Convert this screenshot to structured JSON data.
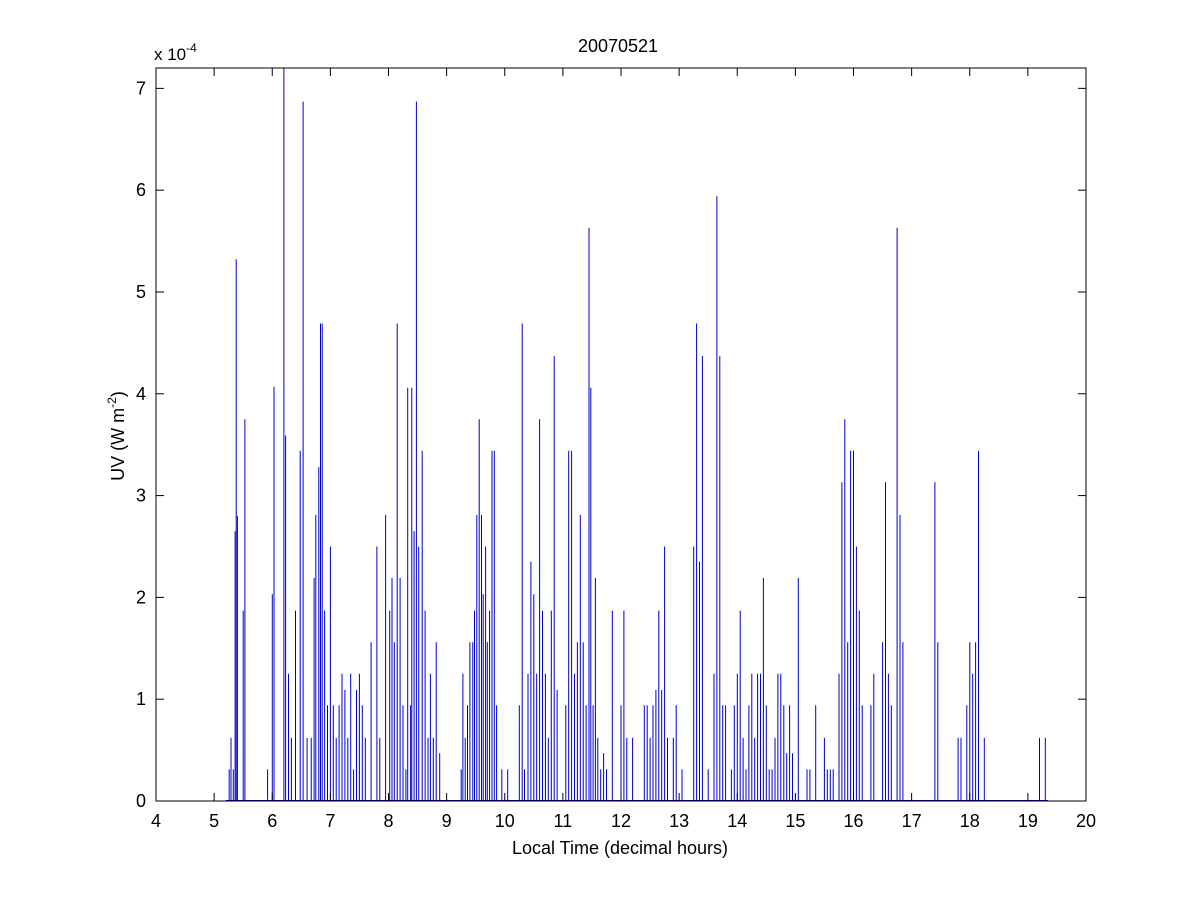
{
  "chart_data": {
    "type": "line",
    "title": "20070521",
    "xlabel": "Local Time (decimal hours)",
    "ylabel_main": "UV (W m",
    "ylabel_sup": "-2",
    "ylabel_tail": ")",
    "exponent_prefix": "x 10",
    "exponent_sup": "-4",
    "xlim": [
      4,
      20
    ],
    "ylim": [
      0,
      7.2
    ],
    "y_scale_factor": 0.0001,
    "x_ticks": [
      4,
      5,
      6,
      7,
      8,
      9,
      10,
      11,
      12,
      13,
      14,
      15,
      16,
      17,
      18,
      19,
      20
    ],
    "x_tick_labels": [
      "4",
      "5",
      "6",
      "7",
      "8",
      "9",
      "10",
      "11",
      "12",
      "13",
      "14",
      "15",
      "16",
      "17",
      "18",
      "19",
      "20"
    ],
    "y_ticks": [
      0,
      1,
      2,
      3,
      4,
      5,
      6,
      7
    ],
    "y_tick_labels": [
      "0",
      "1",
      "2",
      "3",
      "4",
      "5",
      "6",
      "7"
    ],
    "grid": false,
    "series": [
      {
        "color": "#0000cc",
        "spikes": [
          [
            5.26,
            0.31
          ],
          [
            5.29,
            0.62
          ],
          [
            5.33,
            0.31
          ],
          [
            5.36,
            2.65
          ],
          [
            5.38,
            5.32
          ],
          [
            5.4,
            2.8
          ],
          [
            5.5,
            1.87
          ],
          [
            5.53,
            3.75
          ],
          [
            5.92,
            0.31
          ],
          [
            6.0,
            2.03
          ],
          [
            6.03,
            4.07
          ],
          [
            6.2,
            7.2
          ],
          [
            6.23,
            3.59
          ],
          [
            6.28,
            1.25
          ],
          [
            6.33,
            0.62
          ],
          [
            6.4,
            1.87
          ],
          [
            6.48,
            3.44
          ],
          [
            6.53,
            6.87
          ],
          [
            6.6,
            0.62
          ],
          [
            6.67,
            0.62
          ],
          [
            6.72,
            2.19
          ],
          [
            6.75,
            2.81
          ],
          [
            6.8,
            3.28
          ],
          [
            6.83,
            4.69
          ],
          [
            6.86,
            4.69
          ],
          [
            6.9,
            1.87
          ],
          [
            6.95,
            0.94
          ],
          [
            7.0,
            2.5
          ],
          [
            7.05,
            0.94
          ],
          [
            7.1,
            0.62
          ],
          [
            7.15,
            0.94
          ],
          [
            7.2,
            1.25
          ],
          [
            7.25,
            1.09
          ],
          [
            7.3,
            0.62
          ],
          [
            7.35,
            1.25
          ],
          [
            7.4,
            0.31
          ],
          [
            7.45,
            1.09
          ],
          [
            7.5,
            1.25
          ],
          [
            7.55,
            0.94
          ],
          [
            7.6,
            0.62
          ],
          [
            7.7,
            1.56
          ],
          [
            7.8,
            2.5
          ],
          [
            7.85,
            0.62
          ],
          [
            7.95,
            2.81
          ],
          [
            8.02,
            1.87
          ],
          [
            8.06,
            2.19
          ],
          [
            8.1,
            1.56
          ],
          [
            8.15,
            4.69
          ],
          [
            8.2,
            2.19
          ],
          [
            8.25,
            0.94
          ],
          [
            8.3,
            0.31
          ],
          [
            8.33,
            4.06
          ],
          [
            8.38,
            0.94
          ],
          [
            8.4,
            4.06
          ],
          [
            8.44,
            2.65
          ],
          [
            8.48,
            6.87
          ],
          [
            8.52,
            2.5
          ],
          [
            8.58,
            3.44
          ],
          [
            8.63,
            1.87
          ],
          [
            8.68,
            0.62
          ],
          [
            8.72,
            1.25
          ],
          [
            8.77,
            0.62
          ],
          [
            8.82,
            1.56
          ],
          [
            8.88,
            0.47
          ],
          [
            9.25,
            0.31
          ],
          [
            9.28,
            1.25
          ],
          [
            9.32,
            0.62
          ],
          [
            9.36,
            0.94
          ],
          [
            9.4,
            1.56
          ],
          [
            9.45,
            1.56
          ],
          [
            9.48,
            1.87
          ],
          [
            9.52,
            2.81
          ],
          [
            9.56,
            3.75
          ],
          [
            9.6,
            2.81
          ],
          [
            9.63,
            2.03
          ],
          [
            9.67,
            2.5
          ],
          [
            9.7,
            1.56
          ],
          [
            9.74,
            1.87
          ],
          [
            9.78,
            3.44
          ],
          [
            9.82,
            3.44
          ],
          [
            9.86,
            0.94
          ],
          [
            9.95,
            0.31
          ],
          [
            10.05,
            0.31
          ],
          [
            10.25,
            0.94
          ],
          [
            10.3,
            4.69
          ],
          [
            10.34,
            0.31
          ],
          [
            10.4,
            1.25
          ],
          [
            10.45,
            2.35
          ],
          [
            10.5,
            2.03
          ],
          [
            10.55,
            1.25
          ],
          [
            10.6,
            3.75
          ],
          [
            10.65,
            1.87
          ],
          [
            10.7,
            1.25
          ],
          [
            10.75,
            0.62
          ],
          [
            10.8,
            1.87
          ],
          [
            10.85,
            4.37
          ],
          [
            10.9,
            1.09
          ],
          [
            11.05,
            0.94
          ],
          [
            11.1,
            3.44
          ],
          [
            11.15,
            3.44
          ],
          [
            11.2,
            1.25
          ],
          [
            11.25,
            1.56
          ],
          [
            11.3,
            2.81
          ],
          [
            11.35,
            1.56
          ],
          [
            11.4,
            0.94
          ],
          [
            11.45,
            5.63
          ],
          [
            11.48,
            4.06
          ],
          [
            11.52,
            0.94
          ],
          [
            11.56,
            2.19
          ],
          [
            11.6,
            0.62
          ],
          [
            11.65,
            0.31
          ],
          [
            11.7,
            0.47
          ],
          [
            11.75,
            0.31
          ],
          [
            11.85,
            1.87
          ],
          [
            12.0,
            0.94
          ],
          [
            12.05,
            1.87
          ],
          [
            12.1,
            0.62
          ],
          [
            12.2,
            0.62
          ],
          [
            12.4,
            0.94
          ],
          [
            12.45,
            0.94
          ],
          [
            12.5,
            0.62
          ],
          [
            12.55,
            0.94
          ],
          [
            12.6,
            1.09
          ],
          [
            12.65,
            1.87
          ],
          [
            12.7,
            1.09
          ],
          [
            12.75,
            2.5
          ],
          [
            12.8,
            0.62
          ],
          [
            12.9,
            0.62
          ],
          [
            12.95,
            0.94
          ],
          [
            13.05,
            0.31
          ],
          [
            13.25,
            2.5
          ],
          [
            13.3,
            4.69
          ],
          [
            13.35,
            2.35
          ],
          [
            13.4,
            4.37
          ],
          [
            13.5,
            0.31
          ],
          [
            13.6,
            1.25
          ],
          [
            13.65,
            5.94
          ],
          [
            13.7,
            4.37
          ],
          [
            13.75,
            0.94
          ],
          [
            13.8,
            0.94
          ],
          [
            13.9,
            0.31
          ],
          [
            13.95,
            0.94
          ],
          [
            14.0,
            1.25
          ],
          [
            14.05,
            1.87
          ],
          [
            14.1,
            0.62
          ],
          [
            14.15,
            0.31
          ],
          [
            14.2,
            0.94
          ],
          [
            14.25,
            1.25
          ],
          [
            14.3,
            0.62
          ],
          [
            14.35,
            1.25
          ],
          [
            14.4,
            1.25
          ],
          [
            14.45,
            2.19
          ],
          [
            14.5,
            0.94
          ],
          [
            14.55,
            0.31
          ],
          [
            14.6,
            0.31
          ],
          [
            14.65,
            0.62
          ],
          [
            14.7,
            1.25
          ],
          [
            14.75,
            1.25
          ],
          [
            14.8,
            0.94
          ],
          [
            14.85,
            0.47
          ],
          [
            14.9,
            0.94
          ],
          [
            14.95,
            0.47
          ],
          [
            15.05,
            2.19
          ],
          [
            15.2,
            0.31
          ],
          [
            15.25,
            0.31
          ],
          [
            15.35,
            0.94
          ],
          [
            15.5,
            0.62
          ],
          [
            15.55,
            0.31
          ],
          [
            15.6,
            0.31
          ],
          [
            15.65,
            0.31
          ],
          [
            15.75,
            1.25
          ],
          [
            15.8,
            3.13
          ],
          [
            15.85,
            3.75
          ],
          [
            15.9,
            1.56
          ],
          [
            15.95,
            3.44
          ],
          [
            16.0,
            3.44
          ],
          [
            16.05,
            2.5
          ],
          [
            16.1,
            1.87
          ],
          [
            16.15,
            0.94
          ],
          [
            16.3,
            0.94
          ],
          [
            16.35,
            1.25
          ],
          [
            16.5,
            1.56
          ],
          [
            16.55,
            3.13
          ],
          [
            16.6,
            1.25
          ],
          [
            16.65,
            0.94
          ],
          [
            16.75,
            5.63
          ],
          [
            16.8,
            2.81
          ],
          [
            16.85,
            1.56
          ],
          [
            17.4,
            3.13
          ],
          [
            17.45,
            1.56
          ],
          [
            17.8,
            0.62
          ],
          [
            17.85,
            0.62
          ],
          [
            17.95,
            0.94
          ],
          [
            18.0,
            1.56
          ],
          [
            18.05,
            1.25
          ],
          [
            18.1,
            1.56
          ],
          [
            18.15,
            3.44
          ],
          [
            18.25,
            0.62
          ],
          [
            19.2,
            0.62
          ],
          [
            19.3,
            0.62
          ]
        ]
      }
    ]
  }
}
